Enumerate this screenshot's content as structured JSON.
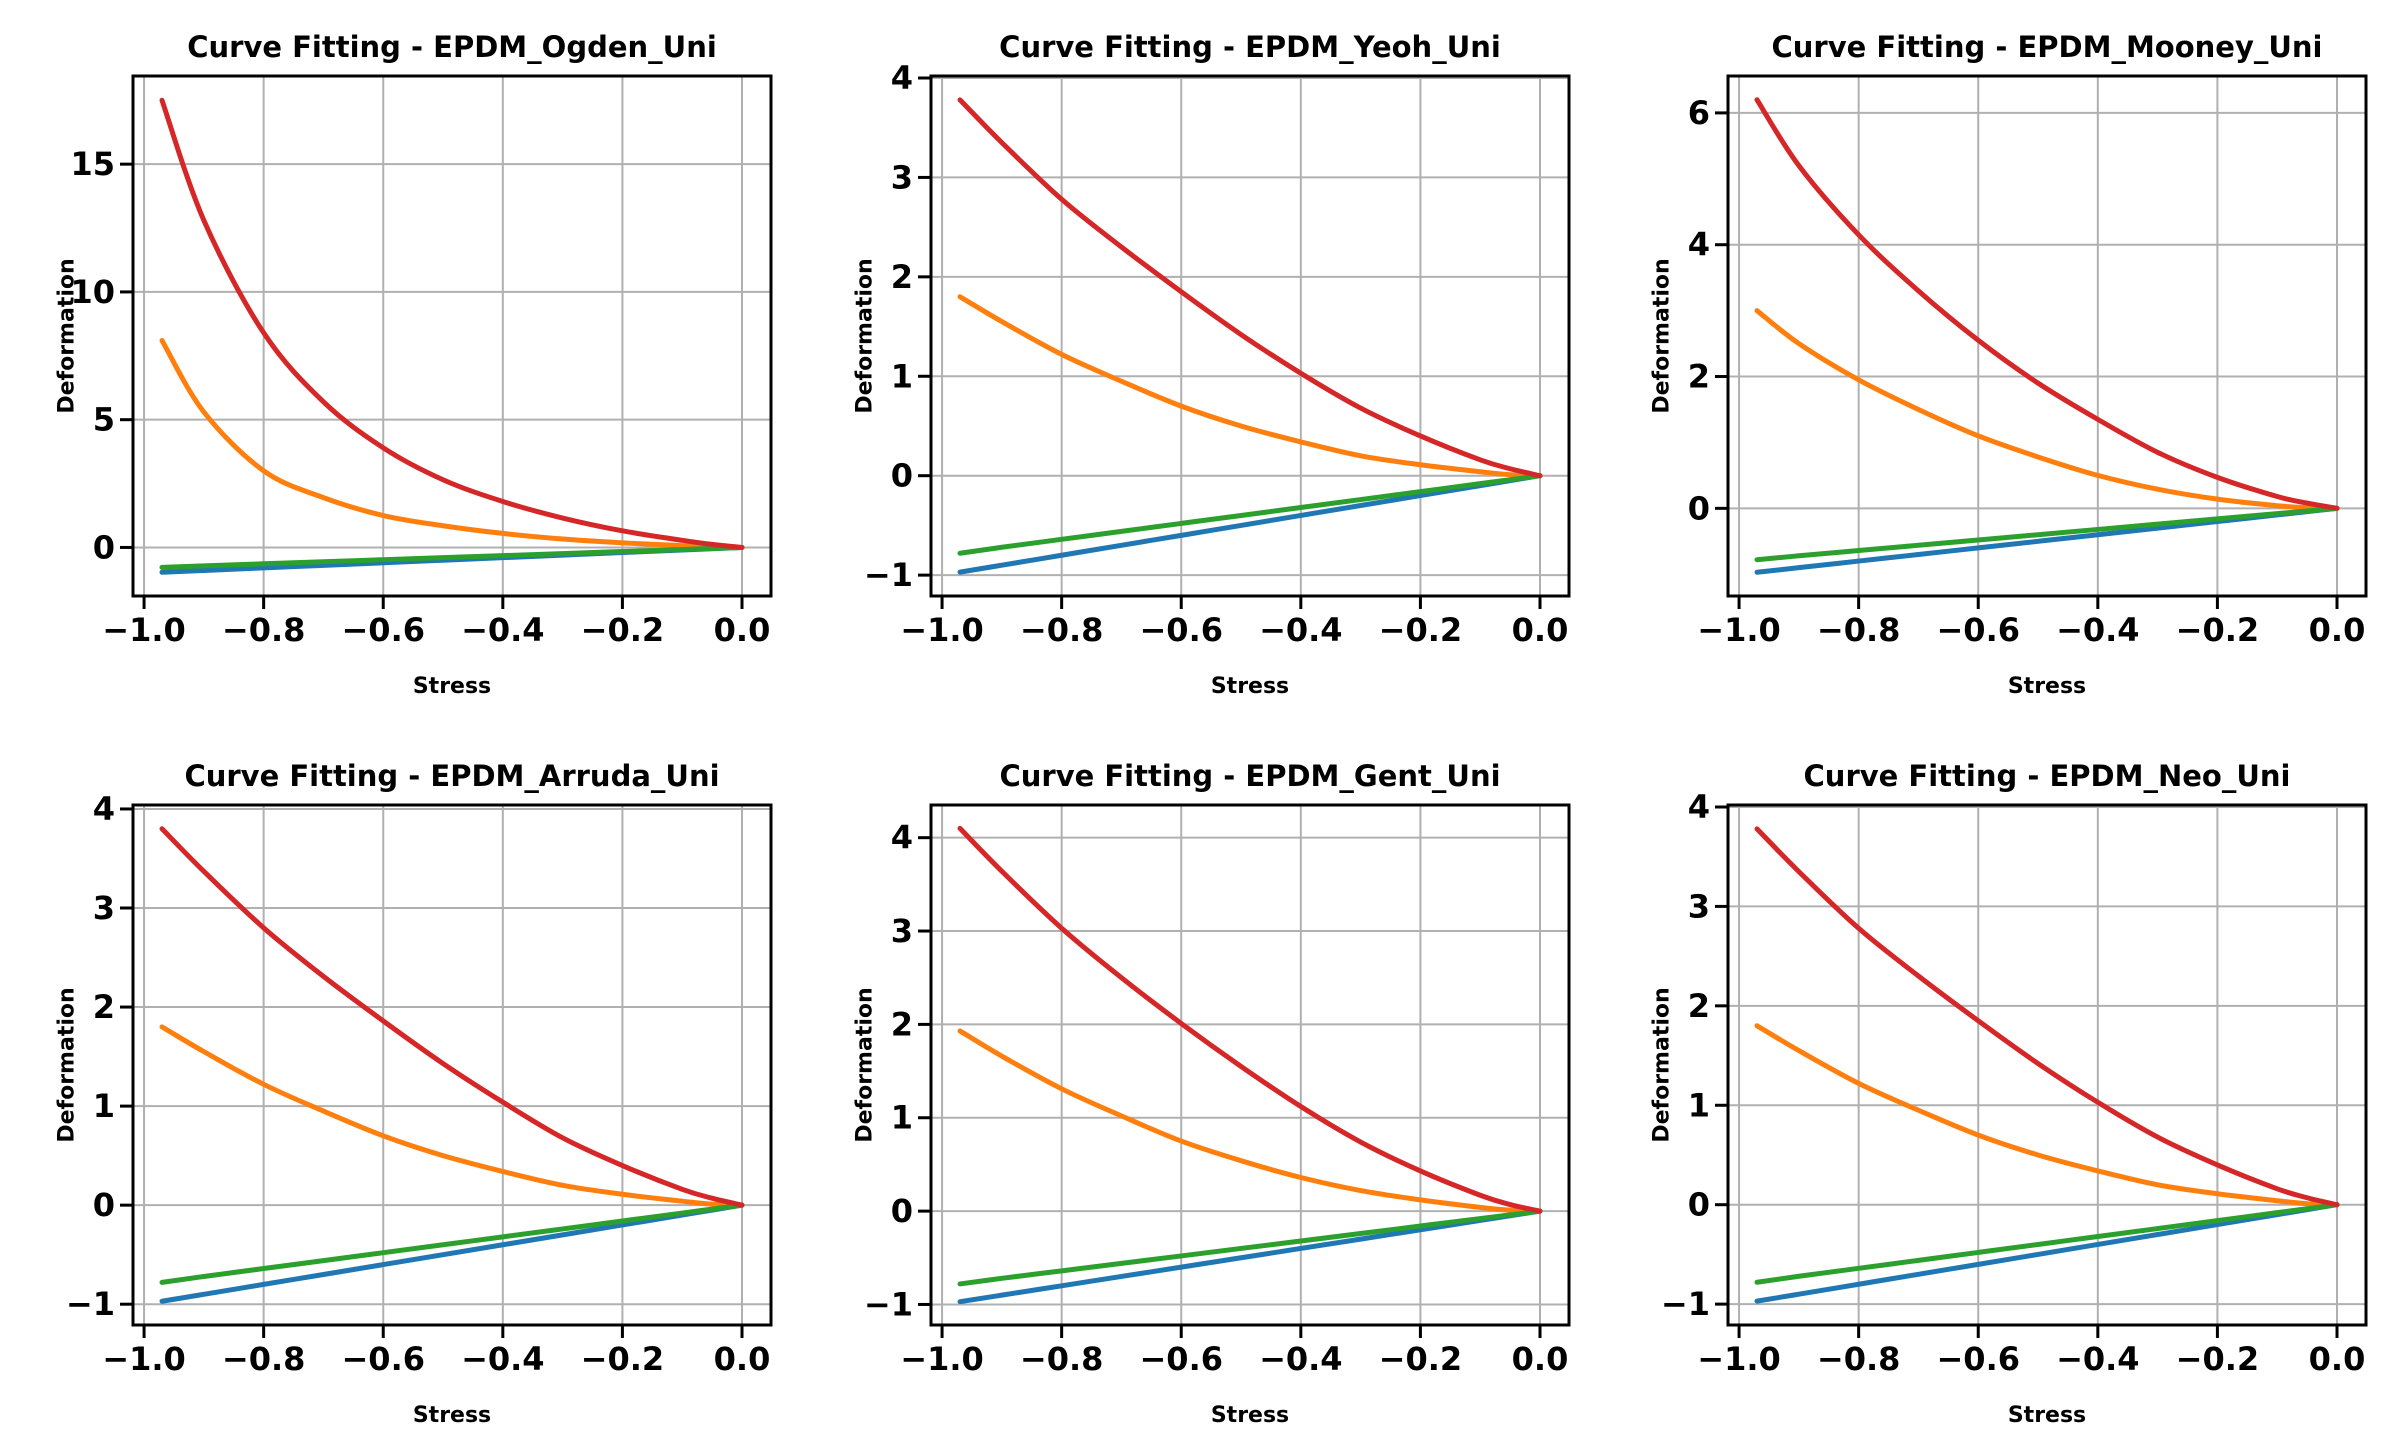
{
  "figure": {
    "rows": 2,
    "cols": 3,
    "background": "#ffffff"
  },
  "colors": {
    "series_blue": "#1f77b4",
    "series_orange": "#ff7f0e",
    "series_green": "#2ca02c",
    "series_red": "#d62728",
    "grid": "#b0b0b0",
    "axis": "#000000",
    "text": "#000000"
  },
  "chart_data": [
    {
      "type": "line",
      "title": "Curve Fitting - EPDM_Ogden_Uni",
      "xlabel": "Stress",
      "ylabel": "Deformation",
      "xlim": [
        -1.0185,
        0.0485
      ],
      "ylim": [
        -1.9,
        18.45
      ],
      "xtick_values": [
        -1.0,
        -0.8,
        -0.6,
        -0.4,
        -0.2,
        0.0
      ],
      "xtick_labels": [
        "−1.0",
        "−0.8",
        "−0.6",
        "−0.4",
        "−0.2",
        "0.0"
      ],
      "ytick_values": [
        0,
        5,
        10,
        15
      ],
      "ytick_labels": [
        "0",
        "5",
        "10",
        "15"
      ],
      "grid": true,
      "legend": "none",
      "x": [
        -0.97,
        -0.9,
        -0.8,
        -0.7,
        -0.6,
        -0.5,
        -0.4,
        -0.3,
        -0.2,
        -0.1,
        -0.05,
        0
      ],
      "series": [
        {
          "name": "blue",
          "color": "#1f77b4",
          "values": [
            -0.97,
            -0.9,
            -0.8,
            -0.7,
            -0.6,
            -0.5,
            -0.4,
            -0.3,
            -0.2,
            -0.1,
            -0.05,
            0
          ]
        },
        {
          "name": "orange",
          "color": "#ff7f0e",
          "values": [
            8.1,
            5.3,
            3.0,
            1.95,
            1.25,
            0.85,
            0.55,
            0.33,
            0.18,
            0.07,
            0.03,
            0
          ]
        },
        {
          "name": "green",
          "color": "#2ca02c",
          "values": [
            -0.78,
            -0.72,
            -0.64,
            -0.56,
            -0.48,
            -0.4,
            -0.32,
            -0.24,
            -0.16,
            -0.08,
            -0.04,
            0
          ]
        },
        {
          "name": "red",
          "color": "#d62728",
          "values": [
            17.5,
            12.8,
            8.4,
            5.7,
            3.9,
            2.65,
            1.8,
            1.15,
            0.65,
            0.28,
            0.12,
            0
          ]
        }
      ]
    },
    {
      "type": "line",
      "title": "Curve Fitting - EPDM_Yeoh_Uni",
      "xlabel": "Stress",
      "ylabel": "Deformation",
      "xlim": [
        -1.0185,
        0.0485
      ],
      "ylim": [
        -1.21,
        4.02
      ],
      "xtick_values": [
        -1.0,
        -0.8,
        -0.6,
        -0.4,
        -0.2,
        0.0
      ],
      "xtick_labels": [
        "−1.0",
        "−0.8",
        "−0.6",
        "−0.4",
        "−0.2",
        "0.0"
      ],
      "ytick_values": [
        -1,
        0,
        1,
        2,
        3,
        4
      ],
      "ytick_labels": [
        "−1",
        "0",
        "1",
        "2",
        "3",
        "4"
      ],
      "grid": true,
      "legend": "none",
      "x": [
        -0.97,
        -0.9,
        -0.8,
        -0.7,
        -0.6,
        -0.5,
        -0.4,
        -0.3,
        -0.2,
        -0.1,
        -0.05,
        0
      ],
      "series": [
        {
          "name": "blue",
          "color": "#1f77b4",
          "values": [
            -0.97,
            -0.9,
            -0.8,
            -0.7,
            -0.6,
            -0.5,
            -0.4,
            -0.3,
            -0.2,
            -0.1,
            -0.05,
            0
          ]
        },
        {
          "name": "orange",
          "color": "#ff7f0e",
          "values": [
            1.8,
            1.55,
            1.22,
            0.95,
            0.7,
            0.5,
            0.34,
            0.2,
            0.11,
            0.04,
            0.01,
            0
          ]
        },
        {
          "name": "green",
          "color": "#2ca02c",
          "values": [
            -0.78,
            -0.72,
            -0.64,
            -0.56,
            -0.48,
            -0.4,
            -0.32,
            -0.24,
            -0.16,
            -0.08,
            -0.04,
            0
          ]
        },
        {
          "name": "red",
          "color": "#d62728",
          "values": [
            3.78,
            3.35,
            2.78,
            2.3,
            1.85,
            1.42,
            1.03,
            0.68,
            0.4,
            0.16,
            0.07,
            0
          ]
        }
      ]
    },
    {
      "type": "line",
      "title": "Curve Fitting - EPDM_Mooney_Uni",
      "xlabel": "Stress",
      "ylabel": "Deformation",
      "xlim": [
        -1.0185,
        0.0485
      ],
      "ylim": [
        -1.33,
        6.56
      ],
      "xtick_values": [
        -1.0,
        -0.8,
        -0.6,
        -0.4,
        -0.2,
        0.0
      ],
      "xtick_labels": [
        "−1.0",
        "−0.8",
        "−0.6",
        "−0.4",
        "−0.2",
        "0.0"
      ],
      "ytick_values": [
        0,
        2,
        4,
        6
      ],
      "ytick_labels": [
        "0",
        "2",
        "4",
        "6"
      ],
      "grid": true,
      "legend": "none",
      "x": [
        -0.97,
        -0.9,
        -0.8,
        -0.7,
        -0.6,
        -0.5,
        -0.4,
        -0.3,
        -0.2,
        -0.1,
        -0.05,
        0
      ],
      "series": [
        {
          "name": "blue",
          "color": "#1f77b4",
          "values": [
            -0.97,
            -0.9,
            -0.8,
            -0.7,
            -0.6,
            -0.5,
            -0.4,
            -0.3,
            -0.2,
            -0.1,
            -0.05,
            0
          ]
        },
        {
          "name": "orange",
          "color": "#ff7f0e",
          "values": [
            3.0,
            2.5,
            1.95,
            1.5,
            1.1,
            0.78,
            0.5,
            0.29,
            0.14,
            0.04,
            0.01,
            0
          ]
        },
        {
          "name": "green",
          "color": "#2ca02c",
          "values": [
            -0.78,
            -0.72,
            -0.64,
            -0.56,
            -0.48,
            -0.4,
            -0.32,
            -0.24,
            -0.16,
            -0.08,
            -0.04,
            0
          ]
        },
        {
          "name": "red",
          "color": "#d62728",
          "values": [
            6.2,
            5.2,
            4.15,
            3.3,
            2.55,
            1.9,
            1.35,
            0.85,
            0.47,
            0.18,
            0.08,
            0
          ]
        }
      ]
    },
    {
      "type": "line",
      "title": "Curve Fitting - EPDM_Arruda_Uni",
      "xlabel": "Stress",
      "ylabel": "Deformation",
      "xlim": [
        -1.0185,
        0.0485
      ],
      "ylim": [
        -1.21,
        4.04
      ],
      "xtick_values": [
        -1.0,
        -0.8,
        -0.6,
        -0.4,
        -0.2,
        0.0
      ],
      "xtick_labels": [
        "−1.0",
        "−0.8",
        "−0.6",
        "−0.4",
        "−0.2",
        "0.0"
      ],
      "ytick_values": [
        -1,
        0,
        1,
        2,
        3,
        4
      ],
      "ytick_labels": [
        "−1",
        "0",
        "1",
        "2",
        "3",
        "4"
      ],
      "grid": true,
      "legend": "none",
      "x": [
        -0.97,
        -0.9,
        -0.8,
        -0.7,
        -0.6,
        -0.5,
        -0.4,
        -0.3,
        -0.2,
        -0.1,
        -0.05,
        0
      ],
      "series": [
        {
          "name": "blue",
          "color": "#1f77b4",
          "values": [
            -0.97,
            -0.9,
            -0.8,
            -0.7,
            -0.6,
            -0.5,
            -0.4,
            -0.3,
            -0.2,
            -0.1,
            -0.05,
            0
          ]
        },
        {
          "name": "orange",
          "color": "#ff7f0e",
          "values": [
            1.8,
            1.55,
            1.22,
            0.95,
            0.7,
            0.5,
            0.34,
            0.2,
            0.11,
            0.04,
            0.01,
            0
          ]
        },
        {
          "name": "green",
          "color": "#2ca02c",
          "values": [
            -0.78,
            -0.72,
            -0.64,
            -0.56,
            -0.48,
            -0.4,
            -0.32,
            -0.24,
            -0.16,
            -0.08,
            -0.04,
            0
          ]
        },
        {
          "name": "red",
          "color": "#d62728",
          "values": [
            3.8,
            3.37,
            2.8,
            2.31,
            1.86,
            1.43,
            1.04,
            0.68,
            0.4,
            0.16,
            0.07,
            0
          ]
        }
      ]
    },
    {
      "type": "line",
      "title": "Curve Fitting - EPDM_Gent_Uni",
      "xlabel": "Stress",
      "ylabel": "Deformation",
      "xlim": [
        -1.0185,
        0.0485
      ],
      "ylim": [
        -1.22,
        4.35
      ],
      "xtick_values": [
        -1.0,
        -0.8,
        -0.6,
        -0.4,
        -0.2,
        0.0
      ],
      "xtick_labels": [
        "−1.0",
        "−0.8",
        "−0.6",
        "−0.4",
        "−0.2",
        "0.0"
      ],
      "ytick_values": [
        -1,
        0,
        1,
        2,
        3,
        4
      ],
      "ytick_labels": [
        "−1",
        "0",
        "1",
        "2",
        "3",
        "4"
      ],
      "grid": true,
      "legend": "none",
      "x": [
        -0.97,
        -0.9,
        -0.8,
        -0.7,
        -0.6,
        -0.5,
        -0.4,
        -0.3,
        -0.2,
        -0.1,
        -0.05,
        0
      ],
      "series": [
        {
          "name": "blue",
          "color": "#1f77b4",
          "values": [
            -0.97,
            -0.9,
            -0.8,
            -0.7,
            -0.6,
            -0.5,
            -0.4,
            -0.3,
            -0.2,
            -0.1,
            -0.05,
            0
          ]
        },
        {
          "name": "orange",
          "color": "#ff7f0e",
          "values": [
            1.93,
            1.66,
            1.31,
            1.02,
            0.75,
            0.54,
            0.36,
            0.22,
            0.12,
            0.04,
            0.01,
            0
          ]
        },
        {
          "name": "green",
          "color": "#2ca02c",
          "values": [
            -0.78,
            -0.72,
            -0.64,
            -0.56,
            -0.48,
            -0.4,
            -0.32,
            -0.24,
            -0.16,
            -0.08,
            -0.04,
            0
          ]
        },
        {
          "name": "red",
          "color": "#d62728",
          "values": [
            4.1,
            3.64,
            3.03,
            2.5,
            2.01,
            1.55,
            1.12,
            0.74,
            0.43,
            0.17,
            0.07,
            0
          ]
        }
      ]
    },
    {
      "type": "line",
      "title": "Curve Fitting - EPDM_Neo_Uni",
      "xlabel": "Stress",
      "ylabel": "Deformation",
      "xlim": [
        -1.0185,
        0.0485
      ],
      "ylim": [
        -1.21,
        4.02
      ],
      "xtick_values": [
        -1.0,
        -0.8,
        -0.6,
        -0.4,
        -0.2,
        0.0
      ],
      "xtick_labels": [
        "−1.0",
        "−0.8",
        "−0.6",
        "−0.4",
        "−0.2",
        "0.0"
      ],
      "ytick_values": [
        -1,
        0,
        1,
        2,
        3,
        4
      ],
      "ytick_labels": [
        "−1",
        "0",
        "1",
        "2",
        "3",
        "4"
      ],
      "grid": true,
      "legend": "none",
      "x": [
        -0.97,
        -0.9,
        -0.8,
        -0.7,
        -0.6,
        -0.5,
        -0.4,
        -0.3,
        -0.2,
        -0.1,
        -0.05,
        0
      ],
      "series": [
        {
          "name": "blue",
          "color": "#1f77b4",
          "values": [
            -0.97,
            -0.9,
            -0.8,
            -0.7,
            -0.6,
            -0.5,
            -0.4,
            -0.3,
            -0.2,
            -0.1,
            -0.05,
            0
          ]
        },
        {
          "name": "orange",
          "color": "#ff7f0e",
          "values": [
            1.8,
            1.55,
            1.22,
            0.95,
            0.7,
            0.5,
            0.34,
            0.2,
            0.11,
            0.04,
            0.01,
            0
          ]
        },
        {
          "name": "green",
          "color": "#2ca02c",
          "values": [
            -0.78,
            -0.72,
            -0.64,
            -0.56,
            -0.48,
            -0.4,
            -0.32,
            -0.24,
            -0.16,
            -0.08,
            -0.04,
            0
          ]
        },
        {
          "name": "red",
          "color": "#d62728",
          "values": [
            3.78,
            3.35,
            2.78,
            2.3,
            1.85,
            1.42,
            1.03,
            0.68,
            0.4,
            0.16,
            0.07,
            0
          ]
        }
      ]
    }
  ]
}
